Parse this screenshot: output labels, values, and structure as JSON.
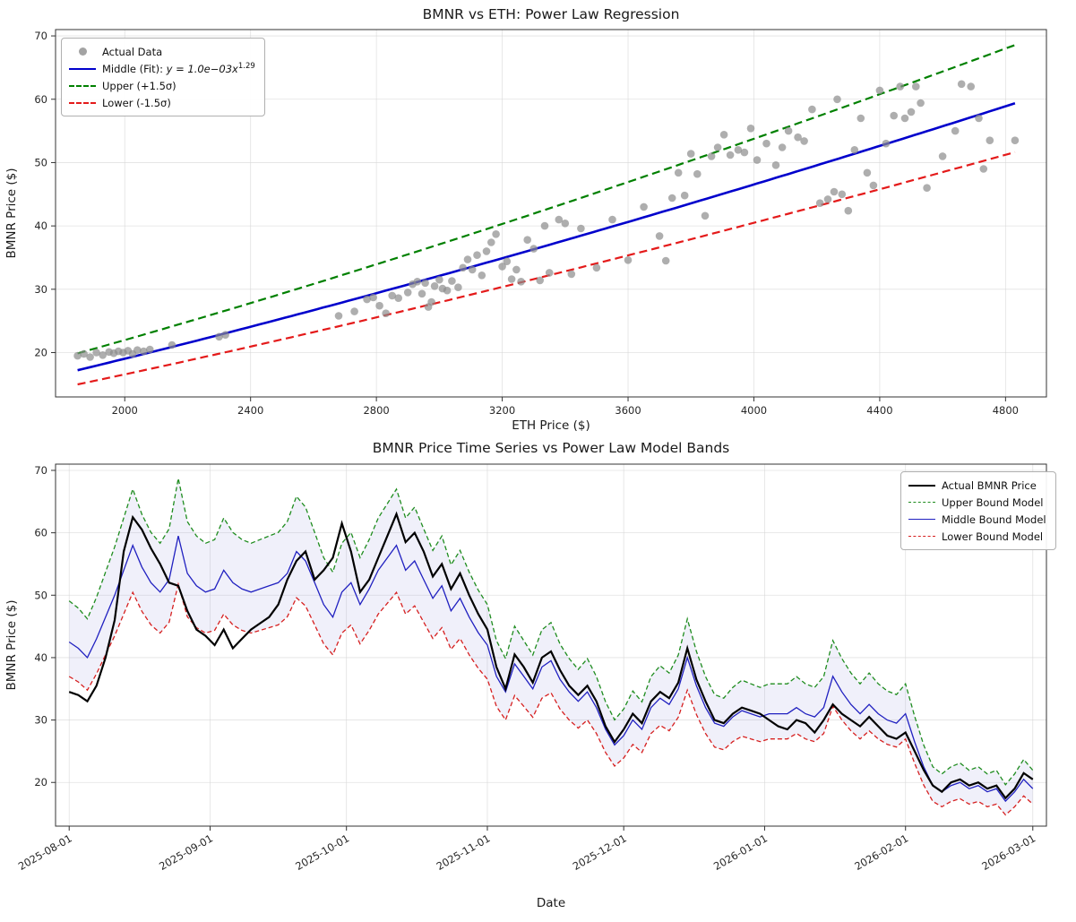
{
  "chart_data": [
    {
      "type": "scatter",
      "title": "BMNR vs ETH: Power Law Regression",
      "xlabel": "ETH Price ($)",
      "ylabel": "BMNR Price ($)",
      "xlim": [
        1780,
        4930
      ],
      "ylim": [
        13,
        71
      ],
      "xticks": [
        2000,
        2400,
        2800,
        3200,
        3600,
        4000,
        4400,
        4800
      ],
      "yticks": [
        20,
        30,
        40,
        50,
        60,
        70
      ],
      "grid": true,
      "legend_position": "upper-left",
      "fit": {
        "a": 0.00105,
        "b": 1.29,
        "upper_factor": 1.155,
        "lower_factor": 0.87,
        "x_range": [
          1850,
          4830
        ]
      },
      "colors": {
        "scatter": "#8c8c8c",
        "middle": "#0000cc",
        "upper": "#008000",
        "lower": "#e41a1a"
      },
      "legend": [
        {
          "type": "marker",
          "color": "#8c8c8c",
          "label": "Actual Data"
        },
        {
          "type": "line",
          "color": "#0000cc",
          "width": 2.5,
          "label": "Middle (Fit): ",
          "math": "y = 1.0e−03x",
          "sup": "1.29"
        },
        {
          "type": "dashed",
          "color": "#008000",
          "width": 2.5,
          "label": "Upper (+1.5σ)"
        },
        {
          "type": "dashed",
          "color": "#e41a1a",
          "width": 2.5,
          "label": "Lower (-1.5σ)"
        }
      ],
      "points": [
        [
          1850,
          19.5
        ],
        [
          1870,
          19.8
        ],
        [
          1890,
          19.3
        ],
        [
          1910,
          20.0
        ],
        [
          1930,
          19.6
        ],
        [
          1950,
          20.1
        ],
        [
          1965,
          19.9
        ],
        [
          1980,
          20.2
        ],
        [
          1995,
          20.0
        ],
        [
          2010,
          20.3
        ],
        [
          2025,
          19.8
        ],
        [
          2040,
          20.4
        ],
        [
          2060,
          20.2
        ],
        [
          2080,
          20.5
        ],
        [
          2150,
          21.2
        ],
        [
          2300,
          22.5
        ],
        [
          2320,
          22.8
        ],
        [
          2680,
          25.8
        ],
        [
          2730,
          26.5
        ],
        [
          2770,
          28.4
        ],
        [
          2790,
          28.7
        ],
        [
          2810,
          27.4
        ],
        [
          2830,
          26.2
        ],
        [
          2850,
          29.0
        ],
        [
          2870,
          28.6
        ],
        [
          2900,
          29.5
        ],
        [
          2915,
          30.8
        ],
        [
          2930,
          31.2
        ],
        [
          2945,
          29.3
        ],
        [
          2955,
          31.0
        ],
        [
          2965,
          27.2
        ],
        [
          2975,
          28.0
        ],
        [
          2985,
          30.5
        ],
        [
          3000,
          31.5
        ],
        [
          3010,
          30.1
        ],
        [
          3025,
          29.8
        ],
        [
          3040,
          31.3
        ],
        [
          3060,
          30.3
        ],
        [
          3075,
          33.4
        ],
        [
          3090,
          34.7
        ],
        [
          3105,
          33.1
        ],
        [
          3120,
          35.4
        ],
        [
          3135,
          32.2
        ],
        [
          3150,
          36.0
        ],
        [
          3165,
          37.4
        ],
        [
          3180,
          38.7
        ],
        [
          3200,
          33.6
        ],
        [
          3215,
          34.4
        ],
        [
          3230,
          31.6
        ],
        [
          3245,
          33.1
        ],
        [
          3260,
          31.2
        ],
        [
          3280,
          37.8
        ],
        [
          3300,
          36.4
        ],
        [
          3320,
          31.4
        ],
        [
          3335,
          40.0
        ],
        [
          3350,
          32.6
        ],
        [
          3380,
          41.0
        ],
        [
          3400,
          40.4
        ],
        [
          3420,
          32.4
        ],
        [
          3450,
          39.6
        ],
        [
          3500,
          33.4
        ],
        [
          3550,
          41.0
        ],
        [
          3600,
          34.6
        ],
        [
          3650,
          43.0
        ],
        [
          3700,
          38.4
        ],
        [
          3720,
          34.5
        ],
        [
          3740,
          44.4
        ],
        [
          3760,
          48.4
        ],
        [
          3780,
          44.8
        ],
        [
          3800,
          51.4
        ],
        [
          3820,
          48.2
        ],
        [
          3845,
          41.6
        ],
        [
          3865,
          51.0
        ],
        [
          3885,
          52.4
        ],
        [
          3905,
          54.4
        ],
        [
          3925,
          51.2
        ],
        [
          3950,
          52.0
        ],
        [
          3970,
          51.6
        ],
        [
          3990,
          55.4
        ],
        [
          4010,
          50.4
        ],
        [
          4040,
          53.0
        ],
        [
          4070,
          49.6
        ],
        [
          4090,
          52.4
        ],
        [
          4110,
          55.0
        ],
        [
          4140,
          54.0
        ],
        [
          4160,
          53.4
        ],
        [
          4185,
          58.4
        ],
        [
          4210,
          43.6
        ],
        [
          4235,
          44.2
        ],
        [
          4255,
          45.4
        ],
        [
          4265,
          60.0
        ],
        [
          4280,
          45.0
        ],
        [
          4300,
          42.4
        ],
        [
          4320,
          52.0
        ],
        [
          4340,
          57.0
        ],
        [
          4360,
          48.4
        ],
        [
          4380,
          46.4
        ],
        [
          4400,
          61.4
        ],
        [
          4420,
          53.0
        ],
        [
          4445,
          57.4
        ],
        [
          4465,
          62.0
        ],
        [
          4480,
          57.0
        ],
        [
          4500,
          58.0
        ],
        [
          4515,
          62.0
        ],
        [
          4530,
          59.4
        ],
        [
          4550,
          46.0
        ],
        [
          4600,
          51.0
        ],
        [
          4640,
          55.0
        ],
        [
          4660,
          62.4
        ],
        [
          4690,
          62.0
        ],
        [
          4715,
          57.0
        ],
        [
          4730,
          49.0
        ],
        [
          4750,
          53.5
        ],
        [
          4830,
          53.5
        ]
      ]
    },
    {
      "type": "line",
      "title": "BMNR Price Time Series vs Power Law Model Bands",
      "xlabel": "Date",
      "ylabel": "BMNR Price ($)",
      "ylim": [
        13,
        71
      ],
      "yticks": [
        20,
        30,
        40,
        50,
        60,
        70
      ],
      "grid": true,
      "legend_position": "upper-right",
      "x_start_date": "2025-08-01",
      "x_step_days": 2,
      "xtick_days": [
        0,
        31,
        61,
        92,
        122,
        153,
        184,
        212
      ],
      "xtick_labels": [
        "2025-08-01",
        "2025-09-01",
        "2025-10-01",
        "2025-11-01",
        "2025-12-01",
        "2026-01-01",
        "2026-02-01",
        "2026-03-01"
      ],
      "band": {
        "upper_factor": 1.155,
        "lower_factor": 0.87,
        "fill": "#9898e0",
        "fill_opacity": 0.15
      },
      "colors": {
        "actual": "#000000",
        "upper": "#1e8c1e",
        "middle": "#2020c0",
        "lower": "#d62020"
      },
      "legend": [
        {
          "type": "line",
          "color": "#000000",
          "width": 2.5,
          "label": "Actual BMNR Price"
        },
        {
          "type": "dashed",
          "color": "#1e8c1e",
          "width": 1.5,
          "label": "Upper Bound Model"
        },
        {
          "type": "line",
          "color": "#2020c0",
          "width": 1.5,
          "label": "Middle Bound Model"
        },
        {
          "type": "dashed",
          "color": "#d62020",
          "width": 1.5,
          "label": "Lower Bound Model"
        }
      ],
      "series": [
        {
          "name": "Actual BMNR Price",
          "values": [
            34.5,
            34.0,
            33.0,
            35.5,
            40.0,
            46.0,
            57.0,
            62.5,
            60.5,
            57.5,
            55.0,
            52.0,
            51.5,
            47.5,
            44.5,
            43.5,
            42.0,
            44.5,
            41.5,
            43.0,
            44.5,
            45.5,
            46.5,
            48.5,
            52.5,
            55.5,
            57.0,
            52.5,
            54.0,
            56.0,
            61.5,
            57.0,
            50.5,
            52.5,
            56.0,
            59.5,
            63.0,
            58.5,
            60.0,
            57.0,
            53.0,
            55.0,
            51.0,
            53.5,
            50.0,
            47.0,
            44.5,
            38.5,
            35.0,
            40.5,
            38.5,
            36.0,
            40.0,
            41.0,
            38.0,
            35.5,
            34.0,
            35.5,
            33.0,
            29.0,
            26.5,
            28.5,
            31.0,
            29.5,
            33.0,
            34.5,
            33.5,
            36.0,
            41.5,
            36.5,
            33.0,
            30.0,
            29.5,
            31.0,
            32.0,
            31.5,
            31.0,
            30.0,
            29.0,
            28.5,
            30.0,
            29.5,
            28.0,
            30.0,
            32.5,
            31.0,
            30.0,
            29.0,
            30.5,
            29.0,
            27.5,
            27.0,
            28.0,
            25.0,
            22.0,
            19.5,
            18.5,
            20.0,
            20.5,
            19.5,
            20.0,
            19.0,
            19.5,
            17.5,
            19.0,
            21.5,
            20.5
          ]
        },
        {
          "name": "Middle Bound Model",
          "values": [
            42.5,
            41.5,
            40.0,
            43.0,
            46.5,
            50.0,
            54.0,
            58.0,
            54.5,
            52.0,
            50.5,
            52.5,
            59.5,
            53.5,
            51.5,
            50.5,
            51.0,
            54.0,
            52.0,
            51.0,
            50.5,
            51.0,
            51.5,
            52.0,
            53.5,
            57.0,
            55.5,
            52.0,
            48.5,
            46.5,
            50.5,
            52.0,
            48.5,
            51.0,
            54.0,
            56.0,
            58.0,
            54.0,
            55.5,
            52.5,
            49.5,
            51.5,
            47.5,
            49.5,
            46.5,
            44.0,
            42.0,
            37.0,
            34.5,
            39.0,
            37.0,
            35.0,
            38.5,
            39.5,
            36.5,
            34.5,
            33.0,
            34.5,
            32.0,
            28.5,
            26.0,
            27.5,
            30.0,
            28.5,
            32.0,
            33.5,
            32.5,
            35.0,
            40.0,
            35.5,
            32.0,
            29.5,
            29.0,
            30.5,
            31.5,
            31.0,
            30.5,
            31.0,
            31.0,
            31.0,
            32.0,
            31.0,
            30.5,
            32.0,
            37.0,
            34.5,
            32.5,
            31.0,
            32.5,
            31.0,
            30.0,
            29.5,
            31.0,
            26.5,
            22.5,
            19.5,
            18.5,
            19.5,
            20.0,
            19.0,
            19.5,
            18.5,
            19.0,
            17.0,
            18.5,
            20.5,
            19.0
          ]
        }
      ]
    }
  ]
}
